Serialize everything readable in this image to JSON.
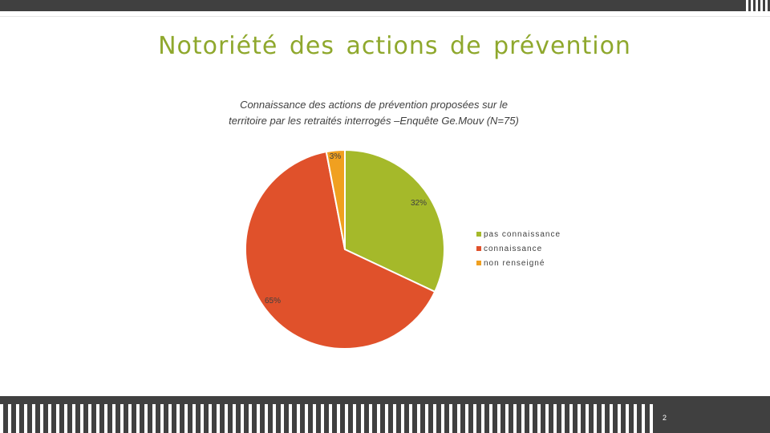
{
  "slide": {
    "title": "Notoriété des actions de prévention",
    "page_number": "2"
  },
  "colors": {
    "green": "#a5b92a",
    "red": "#e0512b",
    "orange": "#f0a020",
    "title": "#8fa82d",
    "frame": "#404040"
  },
  "chart_data": {
    "type": "pie",
    "title": "Connaissance des actions de prévention proposées sur le territoire par les retraités interrogés –Enquête Ge.Mouv (N=75)",
    "title_lines": [
      "Connaissance des actions de prévention proposées sur le",
      "territoire par les retraités interrogés –Enquête Ge.Mouv (N=75)"
    ],
    "slices": [
      {
        "label": "pas connaissance",
        "value": 32,
        "display": "32%",
        "color": "#a5b92a"
      },
      {
        "label": "connaissance",
        "value": 65,
        "display": "65%",
        "color": "#e0512b"
      },
      {
        "label": "non renseigné",
        "value": 3,
        "display": "3%",
        "color": "#f0a020"
      }
    ],
    "legend_position": "right"
  }
}
